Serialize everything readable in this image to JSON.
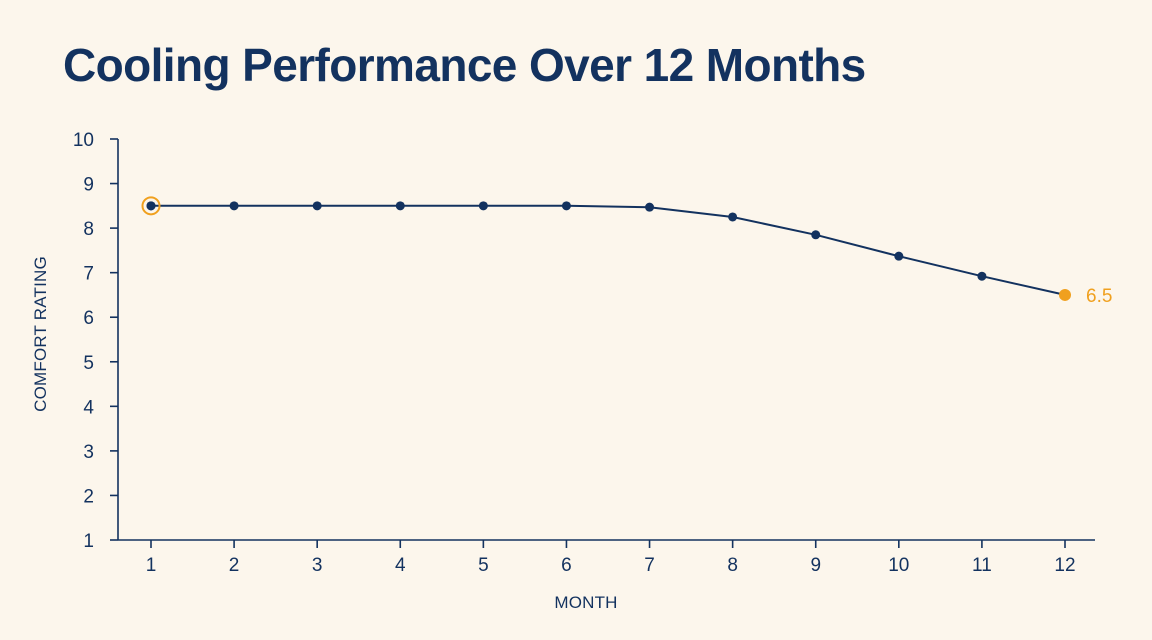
{
  "title": "Cooling Performance Over 12 Months",
  "colors": {
    "background": "#fcf6ec",
    "line": "#13325f",
    "highlight": "#f0a01e"
  },
  "chart_data": {
    "type": "line",
    "title": "Cooling Performance Over 12 Months",
    "xlabel": "MONTH",
    "ylabel": "COMFORT RATING",
    "x": [
      1,
      2,
      3,
      4,
      5,
      6,
      7,
      8,
      9,
      10,
      11,
      12
    ],
    "xlim": [
      1,
      12
    ],
    "ylim": [
      1,
      10
    ],
    "xticks": [
      "1",
      "2",
      "3",
      "4",
      "5",
      "6",
      "7",
      "8",
      "9",
      "10",
      "11",
      "12"
    ],
    "yticks": [
      "1",
      "2",
      "3",
      "4",
      "5",
      "6",
      "7",
      "8",
      "9",
      "10"
    ],
    "grid": false,
    "series": [
      {
        "values": [
          8.5,
          8.5,
          8.5,
          8.5,
          8.5,
          8.5,
          8.47,
          8.25,
          7.85,
          7.37,
          6.92,
          6.5
        ]
      }
    ],
    "annotations": [
      {
        "x": 12,
        "y": 6.5,
        "text": "6.5",
        "color": "#f0a01e"
      }
    ],
    "highlights": [
      {
        "x": 1,
        "y": 8.5,
        "marker": "ring",
        "color": "#f0a01e"
      },
      {
        "x": 12,
        "y": 6.5,
        "marker": "filled",
        "color": "#f0a01e"
      }
    ]
  }
}
